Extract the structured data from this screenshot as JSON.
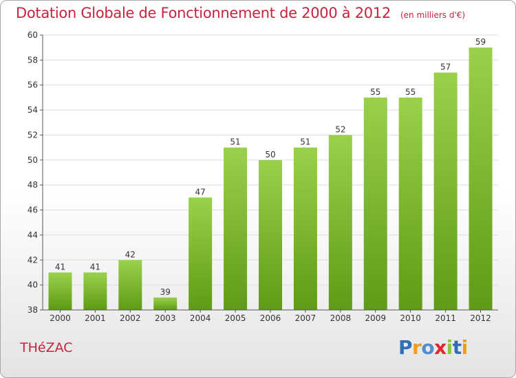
{
  "header": {
    "title": "Dotation Globale de Fonctionnement de 2000 à 2012",
    "unit_note": "(en milliers d'€)"
  },
  "footer": {
    "town": "THéZAC",
    "logo_letters": [
      "P",
      "r",
      "o",
      "x",
      "i",
      "t",
      "i"
    ],
    "logo_colors": [
      "#2f6fb6",
      "#f39c1a",
      "#4f8fd0",
      "#e5242a",
      "#8cc63f",
      "#2f6fb6",
      "#f39c1a"
    ]
  },
  "chart_data": {
    "type": "bar",
    "categories": [
      "2000",
      "2001",
      "2002",
      "2003",
      "2004",
      "2005",
      "2006",
      "2007",
      "2008",
      "2009",
      "2010",
      "2011",
      "2012"
    ],
    "values": [
      41,
      41,
      42,
      39,
      47,
      51,
      50,
      51,
      52,
      55,
      55,
      57,
      59
    ],
    "data_labels": [
      "41",
      "41",
      "42",
      "39",
      "47",
      "51",
      "50",
      "51",
      "52",
      "55",
      "55",
      "57",
      "59"
    ],
    "ylim": [
      38,
      60
    ],
    "yticks": [
      38,
      40,
      42,
      44,
      46,
      48,
      50,
      52,
      54,
      56,
      58,
      60
    ],
    "ytick_labels": [
      "38",
      "40",
      "42",
      "44",
      "46",
      "48",
      "50",
      "52",
      "54",
      "56",
      "58",
      "60"
    ],
    "xlabel": "",
    "ylabel": "",
    "grid": "horizontal",
    "colors": {
      "bar_light": "#9ad14b",
      "bar_dark": "#5f9b16",
      "grid": "#dcdcdc",
      "axis": "#555555"
    }
  }
}
